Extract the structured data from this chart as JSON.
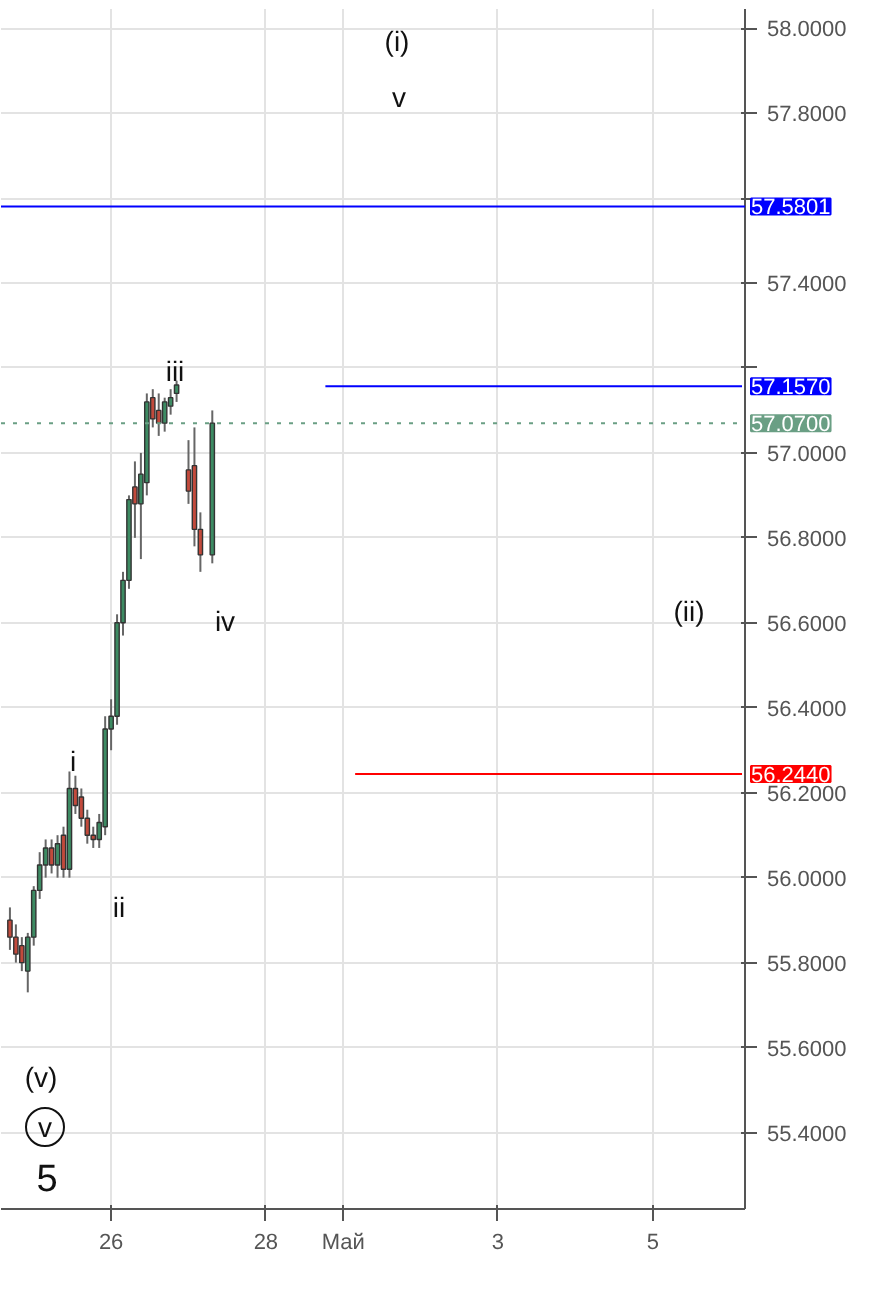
{
  "chart_data": {
    "type": "candlestick",
    "categories": [
      null,
      null,
      null,
      null,
      null,
      null,
      null,
      null,
      null,
      null,
      null,
      null,
      null,
      null,
      null,
      null,
      null,
      null,
      "26",
      null,
      null,
      null,
      null,
      null,
      null,
      null,
      null,
      null,
      null,
      null,
      null,
      null,
      null,
      null,
      null,
      null,
      null,
      null,
      null,
      null,
      null,
      null,
      null,
      null,
      "28",
      null,
      null,
      null,
      null,
      null,
      null,
      null,
      null,
      null,
      null,
      null,
      null,
      "Май",
      null,
      null,
      null,
      null,
      null,
      null,
      null,
      null,
      null,
      null,
      null,
      null,
      null,
      null,
      null,
      null,
      null,
      null,
      null,
      null,
      null,
      null,
      null,
      null,
      null,
      "3",
      null,
      null,
      null,
      null,
      null,
      null,
      null,
      null,
      null,
      null,
      null,
      null,
      null,
      null,
      null,
      null,
      null,
      null,
      null,
      null,
      null,
      null,
      null,
      null,
      null,
      "5",
      null,
      null,
      null,
      null,
      null,
      null,
      null,
      null,
      null,
      null,
      null,
      null,
      null,
      null,
      null
    ],
    "ohlc": [
      null,
      [
        55.9,
        55.93,
        55.83,
        55.86
      ],
      [
        55.86,
        55.89,
        55.8,
        55.82
      ],
      [
        55.84,
        55.86,
        55.78,
        55.8
      ],
      [
        55.78,
        55.87,
        55.73,
        55.86
      ],
      [
        55.86,
        55.98,
        55.84,
        55.97
      ],
      [
        55.97,
        56.06,
        55.95,
        56.03
      ],
      [
        56.03,
        56.09,
        56.0,
        56.07
      ],
      [
        56.07,
        56.09,
        56.01,
        56.03
      ],
      [
        56.03,
        56.1,
        56.0,
        56.08
      ],
      [
        56.1,
        56.12,
        56.0,
        56.02
      ],
      [
        56.02,
        56.25,
        56.0,
        56.21
      ],
      [
        56.21,
        56.24,
        56.15,
        56.17
      ],
      [
        56.19,
        56.21,
        56.12,
        56.14
      ],
      [
        56.14,
        56.16,
        56.08,
        56.1
      ],
      [
        56.1,
        56.12,
        56.07,
        56.09
      ],
      [
        56.09,
        56.15,
        56.07,
        56.13
      ],
      [
        56.12,
        56.38,
        56.1,
        56.35
      ],
      [
        56.35,
        56.42,
        56.3,
        56.38
      ],
      [
        56.38,
        56.62,
        56.36,
        56.6
      ],
      [
        56.6,
        56.72,
        56.57,
        56.7
      ],
      [
        56.7,
        56.9,
        56.68,
        56.89
      ],
      [
        56.92,
        56.98,
        56.8,
        56.88
      ],
      [
        56.88,
        57.0,
        56.75,
        56.95
      ],
      [
        56.93,
        57.14,
        56.9,
        57.12
      ],
      [
        57.13,
        57.15,
        57.06,
        57.08
      ],
      [
        57.1,
        57.14,
        57.04,
        57.07
      ],
      [
        57.07,
        57.13,
        57.05,
        57.12
      ],
      [
        57.11,
        57.15,
        57.09,
        57.13
      ],
      [
        57.14,
        57.17,
        57.12,
        57.16
      ],
      null,
      [
        56.96,
        57.03,
        56.88,
        56.91
      ],
      [
        56.97,
        57.06,
        56.78,
        56.82
      ],
      [
        56.82,
        56.86,
        56.72,
        56.76
      ],
      null,
      [
        56.76,
        57.1,
        56.74,
        57.07
      ],
      null,
      null,
      null,
      null,
      null,
      null,
      null,
      null,
      null,
      null,
      null,
      null,
      null,
      null,
      null,
      null,
      null,
      null,
      null,
      null,
      null,
      null,
      null,
      null,
      null,
      null,
      null,
      null,
      null,
      null,
      null,
      null,
      null,
      null,
      null,
      null,
      null,
      null,
      null,
      null,
      null,
      null,
      null,
      null,
      null,
      null,
      null,
      null,
      null,
      null,
      null,
      null,
      null,
      null,
      null,
      null,
      null,
      null,
      null,
      null,
      null,
      null,
      null,
      null,
      null,
      null,
      null,
      null,
      null,
      null,
      null,
      null,
      null,
      null,
      null,
      null,
      null,
      null,
      null,
      null,
      null,
      null,
      null,
      null,
      null,
      null,
      null,
      null,
      null
    ],
    "colors": [
      null,
      "#c24a3c",
      "#c24a3c",
      "#c24a3c",
      "#3d8b63",
      "#3d8b63",
      "#3d8b63",
      "#3d8b63",
      "#c24a3c",
      "#3d8b63",
      "#c24a3c",
      "#3d8b63",
      "#c24a3c",
      "#c24a3c",
      "#c24a3c",
      "#c24a3c",
      "#3d8b63",
      "#3d8b63",
      "#3d8b63",
      "#3d8b63",
      "#3d8b63",
      "#3d8b63",
      "#c24a3c",
      "#3d8b63",
      "#3d8b63",
      "#c24a3c",
      "#c24a3c",
      "#3d8b63",
      "#3d8b63",
      "#3d8b63",
      null,
      "#c24a3c",
      "#c24a3c",
      "#c24a3c",
      null,
      "#3d8b63",
      null,
      null,
      null,
      null,
      null,
      null,
      null,
      null,
      null,
      null,
      null,
      null,
      null,
      null,
      null,
      null,
      null,
      null,
      null,
      null,
      null,
      null,
      null,
      null,
      null,
      null,
      null,
      null,
      null,
      null,
      null,
      null,
      null,
      null,
      null,
      null,
      null,
      null,
      null,
      null,
      null,
      null,
      null,
      null,
      null,
      null,
      null,
      null,
      null,
      null,
      null,
      null,
      null,
      null,
      null,
      null,
      null,
      null,
      null,
      null,
      null,
      null,
      null,
      null,
      null,
      null,
      null,
      null,
      null,
      null,
      null,
      null,
      null,
      null,
      null,
      null,
      null,
      null,
      null,
      null,
      null,
      null,
      null,
      null,
      null,
      null,
      null,
      null,
      null
    ],
    "series": [
      {
        "type": "line",
        "name": "57.1570",
        "color": "#0000ff",
        "values": [
          null,
          null,
          null,
          null,
          null,
          null,
          null,
          null,
          null,
          null,
          null,
          null,
          null,
          null,
          null,
          null,
          null,
          null,
          null,
          null,
          null,
          null,
          null,
          null,
          null,
          null,
          null,
          null,
          null,
          null,
          null,
          null,
          null,
          null,
          null,
          null,
          null,
          null,
          null,
          null,
          null,
          null,
          null,
          null,
          null,
          null,
          null,
          null,
          null,
          null,
          null,
          null,
          null,
          null,
          57.157,
          57.157,
          57.157,
          57.157,
          57.157,
          57.157,
          57.157,
          57.157,
          57.157,
          57.157,
          57.157,
          57.157,
          57.157,
          57.157,
          57.157,
          57.157,
          57.157,
          57.157,
          57.157,
          57.157,
          57.157,
          57.157,
          57.157,
          57.157,
          57.157,
          57.157,
          57.157,
          57.157,
          57.157,
          57.157,
          57.157,
          57.157,
          57.157,
          57.157,
          57.157,
          57.157,
          57.157,
          57.157,
          57.157,
          57.157,
          57.157,
          57.157,
          57.157,
          57.157,
          57.157,
          57.157,
          57.157,
          57.157,
          57.157,
          57.157,
          57.157,
          57.157,
          57.157,
          57.157,
          57.157,
          57.157,
          57.157,
          57.157,
          57.157,
          57.157,
          57.157,
          57.157,
          57.157,
          57.157,
          57.157,
          57.157,
          57.157,
          57.157,
          57.157,
          57.157,
          57.157
        ]
      },
      {
        "type": "line",
        "name": "56.2440",
        "color": "#ff0000",
        "values": [
          null,
          null,
          null,
          null,
          null,
          null,
          null,
          null,
          null,
          null,
          null,
          null,
          null,
          null,
          null,
          null,
          null,
          null,
          null,
          null,
          null,
          null,
          null,
          null,
          null,
          null,
          null,
          null,
          null,
          null,
          null,
          null,
          null,
          null,
          null,
          null,
          null,
          null,
          null,
          null,
          null,
          null,
          null,
          null,
          null,
          null,
          null,
          null,
          null,
          null,
          null,
          null,
          null,
          null,
          null,
          null,
          null,
          null,
          null,
          56.244,
          56.244,
          56.244,
          56.244,
          56.244,
          56.244,
          56.244,
          56.244,
          56.244,
          56.244,
          56.244,
          56.244,
          56.244,
          56.244,
          56.244,
          56.244,
          56.244,
          56.244,
          56.244,
          56.244,
          56.244,
          56.244,
          56.244,
          56.244,
          56.244,
          56.244,
          56.244,
          56.244,
          56.244,
          56.244,
          56.244,
          56.244,
          56.244,
          56.244,
          56.244,
          56.244,
          56.244,
          56.244,
          56.244,
          56.244,
          56.244,
          56.244,
          56.244,
          56.244,
          56.244,
          56.244,
          56.244,
          56.244,
          56.244,
          56.244,
          56.244,
          56.244,
          56.244,
          56.244,
          56.244,
          56.244,
          56.244,
          56.244,
          56.244,
          56.244,
          56.244,
          56.244,
          56.244,
          56.244,
          56.244,
          56.244
        ]
      }
    ],
    "ref_lines": [
      {
        "axis": "y",
        "value": 57.5801,
        "label": "57.5801",
        "color": "#0000ff",
        "line_style": "solid"
      },
      {
        "axis": "y",
        "value": 57.07,
        "label": "57.0700",
        "color": "#6a9f84",
        "line_style": "dotted"
      }
    ],
    "annotations": [
      "(i)",
      "v",
      "iii",
      "iv",
      "(ii)",
      "i",
      "ii",
      "(v)",
      "v",
      "5"
    ],
    "ylim": [
      55.22,
      58.045
    ],
    "yticks": [
      {
        "value": 55.4,
        "label": "55.4000"
      },
      {
        "value": 55.6,
        "label": "55.6000"
      },
      {
        "value": 55.8,
        "label": "55.8000"
      },
      {
        "value": 56.0,
        "label": "56.0000"
      },
      {
        "value": 56.2,
        "label": "56.2000"
      },
      {
        "value": 56.4,
        "label": "56.4000"
      },
      {
        "value": 56.6,
        "label": "56.6000"
      },
      {
        "value": 56.8,
        "label": "56.8000"
      },
      {
        "value": 57.0,
        "label": "57.0000"
      },
      {
        "value": 57.2,
        "label": null
      },
      {
        "value": 57.4,
        "label": "57.4000"
      },
      {
        "value": 57.6,
        "label": null
      },
      {
        "value": 57.8,
        "label": "57.8000"
      },
      {
        "value": 58.0,
        "label": "58.0000"
      }
    ],
    "grid": true
  }
}
